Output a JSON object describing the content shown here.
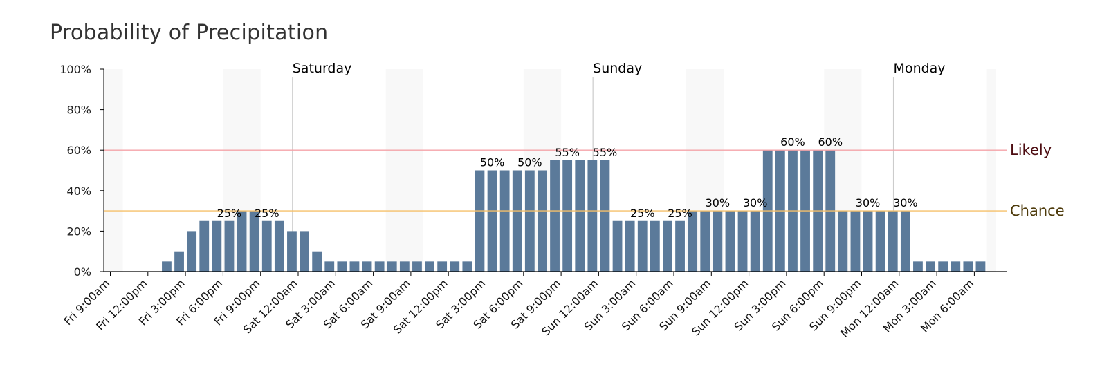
{
  "title": "Probability of Precipitation",
  "chart_data": {
    "type": "bar",
    "title": "Probability of Precipitation",
    "xlabel": "",
    "ylabel": "",
    "ylim": [
      0,
      100
    ],
    "y_ticks": [
      0,
      20,
      40,
      60,
      80,
      100
    ],
    "y_tick_format": "%",
    "start_time": "Fri 9:00am",
    "interval_hours": 1,
    "x_tick_labels": [
      "Fri 9:00am",
      "Fri 12:00pm",
      "Fri 3:00pm",
      "Fri 6:00pm",
      "Fri 9:00pm",
      "Sat 12:00am",
      "Sat 3:00am",
      "Sat 6:00am",
      "Sat 9:00am",
      "Sat 12:00pm",
      "Sat 3:00pm",
      "Sat 6:00pm",
      "Sat 9:00pm",
      "Sun 12:00am",
      "Sun 3:00am",
      "Sun 6:00am",
      "Sun 9:00am",
      "Sun 12:00pm",
      "Sun 3:00pm",
      "Sun 6:00pm",
      "Sun 9:00pm",
      "Mon 12:00am",
      "Mon 3:00am",
      "Mon 6:00am"
    ],
    "values": [
      0,
      0,
      0,
      0,
      5,
      10,
      20,
      25,
      25,
      25,
      30,
      30,
      25,
      25,
      20,
      20,
      10,
      5,
      5,
      5,
      5,
      5,
      5,
      5,
      5,
      5,
      5,
      5,
      5,
      50,
      50,
      50,
      50,
      50,
      50,
      55,
      55,
      55,
      55,
      55,
      25,
      25,
      25,
      25,
      25,
      25,
      30,
      30,
      30,
      30,
      30,
      30,
      60,
      60,
      60,
      60,
      60,
      60,
      30,
      30,
      30,
      30,
      30,
      30,
      5,
      5,
      5,
      5,
      5,
      5
    ],
    "bar_labels": [
      {
        "index": 9,
        "text": "25%"
      },
      {
        "index": 12,
        "text": "25%"
      },
      {
        "index": 30,
        "text": "50%"
      },
      {
        "index": 33,
        "text": "50%"
      },
      {
        "index": 36,
        "text": "55%"
      },
      {
        "index": 39,
        "text": "55%"
      },
      {
        "index": 42,
        "text": "25%"
      },
      {
        "index": 45,
        "text": "25%"
      },
      {
        "index": 48,
        "text": "30%"
      },
      {
        "index": 51,
        "text": "30%"
      },
      {
        "index": 54,
        "text": "60%"
      },
      {
        "index": 57,
        "text": "60%"
      },
      {
        "index": 60,
        "text": "30%"
      },
      {
        "index": 63,
        "text": "30%"
      }
    ],
    "day_markers": [
      {
        "label": "Saturday",
        "hour_offset": 15
      },
      {
        "label": "Sunday",
        "hour_offset": 39
      },
      {
        "label": "Monday",
        "hour_offset": 63
      }
    ],
    "night_bands": [
      {
        "start_hour": -1,
        "end_hour": 1
      },
      {
        "start_hour": 9,
        "end_hour": 12
      },
      {
        "start_hour": 22,
        "end_hour": 25
      },
      {
        "start_hour": 33,
        "end_hour": 36
      },
      {
        "start_hour": 46,
        "end_hour": 49
      },
      {
        "start_hour": 57,
        "end_hour": 60
      },
      {
        "start_hour": 70,
        "end_hour": 71
      }
    ],
    "thresholds": [
      {
        "label": "Likely",
        "value": 60,
        "line_color": "#f4a3a8",
        "text_color": "#4d0d12"
      },
      {
        "label": "Chance",
        "value": 30,
        "line_color": "#f5c06a",
        "text_color": "#4d3a0a"
      }
    ],
    "colors": {
      "bar": "#5b7a9a",
      "axis": "#000000",
      "night_band": "#f8f8f8",
      "day_line": "#cccccc"
    },
    "grid": false
  }
}
